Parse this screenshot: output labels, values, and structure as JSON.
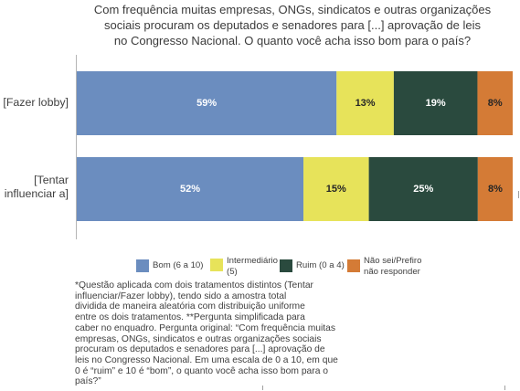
{
  "chart_data": {
    "type": "bar",
    "orientation": "horizontal",
    "stacking": "100%",
    "title": "Com frequência muitas empresas, ONGs, sindicatos e outras organizações\nsociais procuram os deputados e senadores para [...] aprovação de leis\nno Congresso Nacional. O quanto você acha isso bom para o país?",
    "xlabel": "",
    "ylabel": "",
    "xlim": [
      0,
      100
    ],
    "grid": false,
    "legend_position": "bottom",
    "categories": [
      "[Fazer lobby]",
      "[Tentar\ninfluenciar a]"
    ],
    "series": [
      {
        "name": "Bom (6 a 10)",
        "values": [
          59,
          52
        ],
        "labels": [
          "59%",
          "52%"
        ],
        "color": "#6b8dbf",
        "label_color": "#ffffff"
      },
      {
        "name": "Intermediário\n(5)",
        "values": [
          13,
          15
        ],
        "labels": [
          "13%",
          "15%"
        ],
        "color": "#e7e35a",
        "label_color": "#262626"
      },
      {
        "name": "Ruim (0 a 4)",
        "values": [
          19,
          25
        ],
        "labels": [
          "19%",
          "25%"
        ],
        "color": "#2a4a3e",
        "label_color": "#ffffff"
      },
      {
        "name": "Não sei/Prefiro\nnão responder",
        "values": [
          8,
          8
        ],
        "labels": [
          "8%",
          "8%"
        ],
        "color": "#d47b36",
        "label_color": "#262626"
      }
    ]
  },
  "footnote": "*Questão aplicada com dois tratamentos distintos (Tentar\ninfluenciar/Fazer lobby), tendo sido a amostra total\ndividida de maneira aleatória com distribuição uniforme\nentre os dois tratamentos. **Pergunta simplificada para\ncaber no enquadro. Pergunta original: “Com frequência muitas\nempresas, ONGs, sindicatos e outras organizações sociais\nprocuram os deputados e senadores para [...] aprovação de\nleis no Congresso Nacional. Em uma escala de 0 a 10, em que\n0 é “ruim” e 10 é “bom”, o quanto você acha isso bom para o\npaís?”"
}
